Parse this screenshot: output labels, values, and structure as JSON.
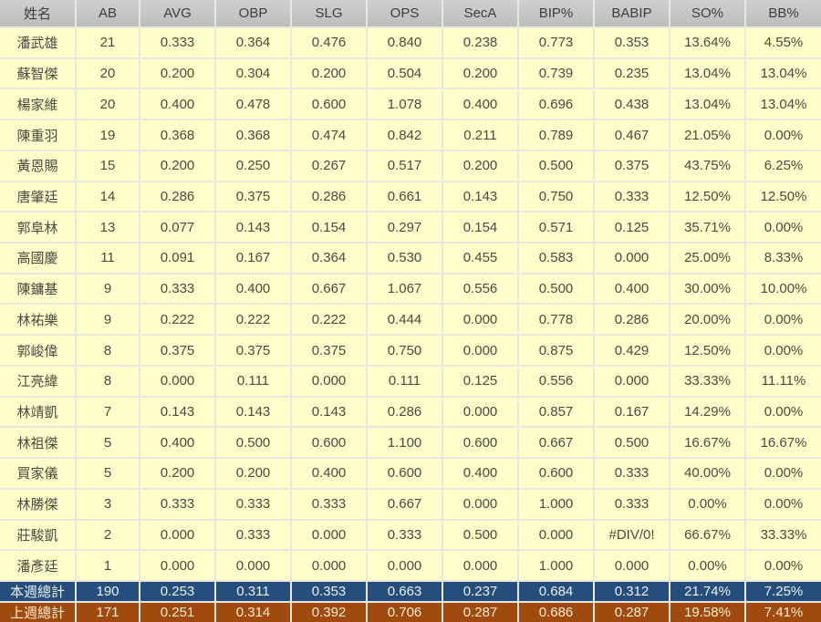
{
  "table": {
    "columns": [
      "姓名",
      "AB",
      "AVG",
      "OBP",
      "SLG",
      "OPS",
      "SecA",
      "BIP%",
      "BABIP",
      "SO%",
      "BB%"
    ],
    "players": [
      {
        "name": "潘武雄",
        "stats": [
          "21",
          "0.333",
          "0.364",
          "0.476",
          "0.840",
          "0.238",
          "0.773",
          "0.353",
          "13.64%",
          "4.55%"
        ]
      },
      {
        "name": "蘇智傑",
        "stats": [
          "20",
          "0.200",
          "0.304",
          "0.200",
          "0.504",
          "0.200",
          "0.739",
          "0.235",
          "13.04%",
          "13.04%"
        ]
      },
      {
        "name": "楊家維",
        "stats": [
          "20",
          "0.400",
          "0.478",
          "0.600",
          "1.078",
          "0.400",
          "0.696",
          "0.438",
          "13.04%",
          "13.04%"
        ]
      },
      {
        "name": "陳重羽",
        "stats": [
          "19",
          "0.368",
          "0.368",
          "0.474",
          "0.842",
          "0.211",
          "0.789",
          "0.467",
          "21.05%",
          "0.00%"
        ]
      },
      {
        "name": "黃恩賜",
        "stats": [
          "15",
          "0.200",
          "0.250",
          "0.267",
          "0.517",
          "0.200",
          "0.500",
          "0.375",
          "43.75%",
          "6.25%"
        ]
      },
      {
        "name": "唐肇廷",
        "stats": [
          "14",
          "0.286",
          "0.375",
          "0.286",
          "0.661",
          "0.143",
          "0.750",
          "0.333",
          "12.50%",
          "12.50%"
        ]
      },
      {
        "name": "郭阜林",
        "stats": [
          "13",
          "0.077",
          "0.143",
          "0.154",
          "0.297",
          "0.154",
          "0.571",
          "0.125",
          "35.71%",
          "0.00%"
        ]
      },
      {
        "name": "高國慶",
        "stats": [
          "11",
          "0.091",
          "0.167",
          "0.364",
          "0.530",
          "0.455",
          "0.583",
          "0.000",
          "25.00%",
          "8.33%"
        ]
      },
      {
        "name": "陳鏞基",
        "stats": [
          "9",
          "0.333",
          "0.400",
          "0.667",
          "1.067",
          "0.556",
          "0.500",
          "0.400",
          "30.00%",
          "10.00%"
        ]
      },
      {
        "name": "林祐樂",
        "stats": [
          "9",
          "0.222",
          "0.222",
          "0.222",
          "0.444",
          "0.000",
          "0.778",
          "0.286",
          "20.00%",
          "0.00%"
        ]
      },
      {
        "name": "郭峻偉",
        "stats": [
          "8",
          "0.375",
          "0.375",
          "0.375",
          "0.750",
          "0.000",
          "0.875",
          "0.429",
          "12.50%",
          "0.00%"
        ]
      },
      {
        "name": "江亮緯",
        "stats": [
          "8",
          "0.000",
          "0.111",
          "0.000",
          "0.111",
          "0.125",
          "0.556",
          "0.000",
          "33.33%",
          "11.11%"
        ]
      },
      {
        "name": "林靖凱",
        "stats": [
          "7",
          "0.143",
          "0.143",
          "0.143",
          "0.286",
          "0.000",
          "0.857",
          "0.167",
          "14.29%",
          "0.00%"
        ]
      },
      {
        "name": "林祖傑",
        "stats": [
          "5",
          "0.400",
          "0.500",
          "0.600",
          "1.100",
          "0.600",
          "0.667",
          "0.500",
          "16.67%",
          "16.67%"
        ]
      },
      {
        "name": "買家儀",
        "stats": [
          "5",
          "0.200",
          "0.200",
          "0.400",
          "0.600",
          "0.400",
          "0.600",
          "0.333",
          "40.00%",
          "0.00%"
        ]
      },
      {
        "name": "林勝傑",
        "stats": [
          "3",
          "0.333",
          "0.333",
          "0.333",
          "0.667",
          "0.000",
          "1.000",
          "0.333",
          "0.00%",
          "0.00%"
        ]
      },
      {
        "name": "莊駿凱",
        "stats": [
          "2",
          "0.000",
          "0.333",
          "0.000",
          "0.333",
          "0.500",
          "0.000",
          "#DIV/0!",
          "66.67%",
          "33.33%"
        ]
      },
      {
        "name": "潘彥廷",
        "stats": [
          "1",
          "0.000",
          "0.000",
          "0.000",
          "0.000",
          "0.000",
          "1.000",
          "0.000",
          "0.00%",
          "0.00%"
        ]
      }
    ],
    "totals": [
      {
        "id": "this-week",
        "label": "本週總計",
        "stats": [
          "190",
          "0.253",
          "0.311",
          "0.353",
          "0.663",
          "0.237",
          "0.684",
          "0.312",
          "21.74%",
          "7.25%"
        ]
      },
      {
        "id": "last-week",
        "label": "上週總計",
        "stats": [
          "171",
          "0.251",
          "0.314",
          "0.392",
          "0.706",
          "0.287",
          "0.686",
          "0.287",
          "19.58%",
          "7.41%"
        ]
      }
    ],
    "colors": {
      "header_bg_top": "#cfcfcf",
      "header_bg_bottom": "#bdbdbd",
      "header_text": "#3d3d3d",
      "cell_bg": "#ffffcb",
      "cell_text": "#4a4a40",
      "grid_line": "#e9e8df",
      "total_week_bg": "#264e7c",
      "total_week_text": "#ebf0e9",
      "total_lastweek_bg": "#a04a10",
      "total_lastweek_text": "#f8edd0"
    }
  }
}
